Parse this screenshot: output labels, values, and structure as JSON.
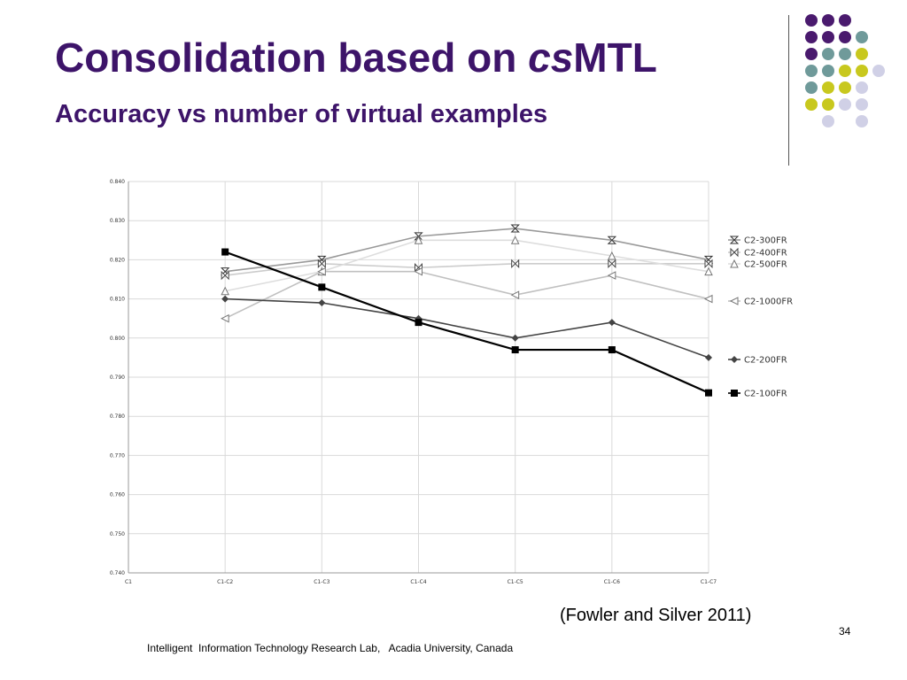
{
  "slide": {
    "title_main": "Consolidation based on ",
    "title_italic": "cs",
    "title_end": "MTL",
    "subtitle": "Accuracy vs number of virtual examples",
    "citation": "(Fowler and Silver 2011)",
    "page_number": "34",
    "footer": "Intelligent  Information Technology Research Lab,   Acadia University, Canada"
  },
  "decoration": {
    "dot_colors": {
      "purple": "#4a1a6e",
      "teal": "#6f9a9a",
      "lime": "#c8c81e",
      "lavender": "#d0d0e6"
    },
    "dot_grid": [
      [
        "purple",
        "purple",
        "purple",
        null
      ],
      [
        "purple",
        "purple",
        "purple",
        "teal"
      ],
      [
        "purple",
        "teal",
        "teal",
        "lime"
      ],
      [
        "teal",
        "teal",
        "lime",
        "lime",
        "lavender"
      ],
      [
        "teal",
        "lime",
        "lime",
        "lavender"
      ],
      [
        "lime",
        "lime",
        "lavender",
        "lavender"
      ],
      [
        null,
        "lavender",
        null,
        "lavender"
      ]
    ]
  },
  "chart_data": {
    "type": "line",
    "x": [
      "C1",
      "C1-C2",
      "C1-C3",
      "C1-C4",
      "C1-C5",
      "C1-C6",
      "C1-C7"
    ],
    "ylim": [
      0.74,
      0.84
    ],
    "yticks": [
      "0.840",
      "0.830",
      "0.820",
      "0.810",
      "0.800",
      "0.790",
      "0.780",
      "0.770",
      "0.760",
      "0.750",
      "0.740"
    ],
    "grid": true,
    "series": [
      {
        "name": "C2-300FR",
        "values": [
          null,
          0.817,
          0.82,
          0.826,
          0.828,
          0.825,
          0.82
        ],
        "color": "#9a9a9a",
        "marker": "bowtie-x"
      },
      {
        "name": "C2-400FR",
        "values": [
          null,
          0.816,
          0.819,
          0.818,
          0.819,
          0.819,
          0.819
        ],
        "color": "#cccccc",
        "marker": "bowtie"
      },
      {
        "name": "C2-500FR",
        "values": [
          null,
          0.812,
          0.817,
          0.825,
          0.825,
          0.821,
          0.817
        ],
        "color": "#dddddd",
        "marker": "triangle"
      },
      {
        "name": "C2-1000FR",
        "values": [
          null,
          0.805,
          0.817,
          0.817,
          0.811,
          0.816,
          0.81
        ],
        "color": "#c0c0c0",
        "marker": "triangle-left"
      },
      {
        "name": "C2-200FR",
        "values": [
          null,
          0.81,
          0.809,
          0.805,
          0.8,
          0.804,
          0.795
        ],
        "color": "#444444",
        "marker": "diamond"
      },
      {
        "name": "C2-100FR",
        "values": [
          null,
          0.822,
          0.813,
          0.804,
          0.797,
          0.797,
          0.786
        ],
        "color": "#000000",
        "marker": "square"
      }
    ]
  }
}
